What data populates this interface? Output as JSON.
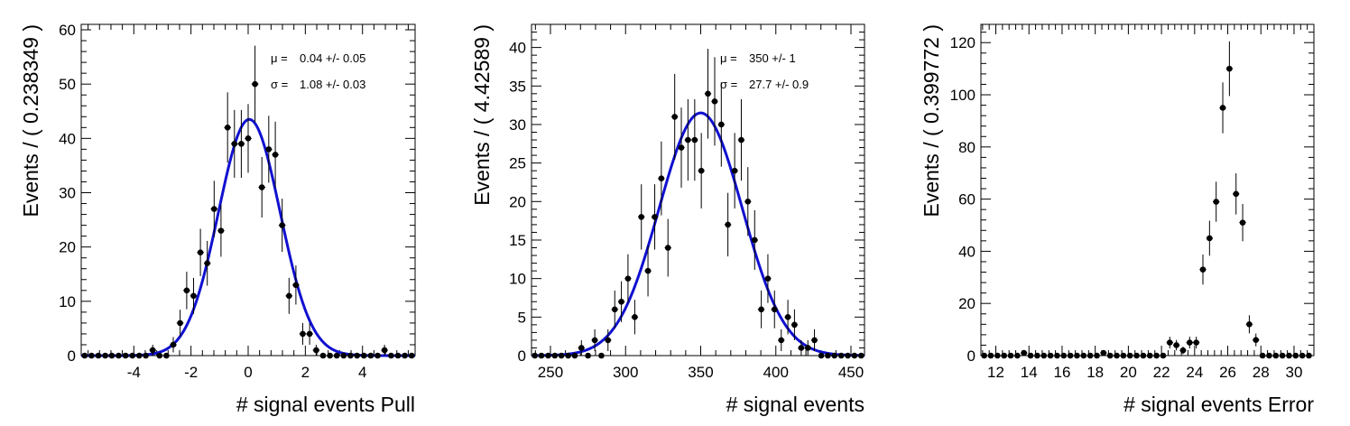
{
  "chart_data": [
    {
      "type": "scatter",
      "xlabel": "# signal events Pull",
      "ylabel": "Events / ( 0.238349 )",
      "xlim": [
        -5.84,
        5.84
      ],
      "ylim": [
        0,
        61
      ],
      "xticks": [
        -4,
        -2,
        0,
        2,
        4
      ],
      "yticks": [
        0,
        10,
        20,
        30,
        40,
        50,
        60
      ],
      "stats": [
        {
          "label": "μ =",
          "value": "0.04 +/- 0.05"
        },
        {
          "label": "σ =",
          "value": "1.08 +/- 0.03"
        }
      ],
      "fit": {
        "mean": 0.04,
        "sigma": 1.08,
        "amplitude": 43.5,
        "color": "#1010d0"
      },
      "x": [
        -5.72,
        -5.48,
        -5.24,
        -5.0,
        -4.77,
        -4.53,
        -4.29,
        -4.05,
        -3.81,
        -3.58,
        -3.34,
        -3.1,
        -2.86,
        -2.62,
        -2.38,
        -2.15,
        -1.91,
        -1.67,
        -1.43,
        -1.19,
        -0.95,
        -0.72,
        -0.48,
        -0.24,
        0.0,
        0.24,
        0.48,
        0.72,
        0.95,
        1.19,
        1.43,
        1.67,
        1.91,
        2.15,
        2.38,
        2.62,
        2.86,
        3.1,
        3.34,
        3.58,
        3.81,
        4.05,
        4.29,
        4.53,
        4.77,
        5.0,
        5.24,
        5.48,
        5.72
      ],
      "y": [
        0,
        0,
        0,
        0,
        0,
        0,
        0,
        0,
        0,
        0,
        1,
        0,
        0,
        2,
        6,
        12,
        11,
        19,
        17,
        27,
        23,
        42,
        39,
        39,
        40,
        50,
        31,
        38,
        37,
        24,
        11,
        13,
        4,
        4,
        1,
        0,
        0,
        0,
        0,
        0,
        0,
        0,
        0,
        0,
        1,
        0,
        0,
        0,
        0
      ]
    },
    {
      "type": "scatter",
      "xlabel": "# signal events",
      "ylabel": "Events / ( 4.42589 )",
      "xlim": [
        237.4,
        459.0
      ],
      "ylim": [
        0,
        43
      ],
      "xticks": [
        250,
        300,
        350,
        400,
        450
      ],
      "yticks": [
        0,
        5,
        10,
        15,
        20,
        25,
        30,
        35,
        40
      ],
      "stats": [
        {
          "label": "μ =",
          "value": "350 +/- 1"
        },
        {
          "label": "σ =",
          "value": "27.7 +/- 0.9"
        }
      ],
      "fit": {
        "mean": 350,
        "sigma": 27.7,
        "amplitude": 31.5,
        "color": "#1010d0"
      },
      "x": [
        239.6,
        244.0,
        248.5,
        252.9,
        257.3,
        261.8,
        266.2,
        270.6,
        275.0,
        279.5,
        283.9,
        288.3,
        292.8,
        297.2,
        301.6,
        306.1,
        310.5,
        314.9,
        319.4,
        323.8,
        328.2,
        332.7,
        337.1,
        341.5,
        346.0,
        350.4,
        354.8,
        359.3,
        363.7,
        368.1,
        372.6,
        377.0,
        381.4,
        385.9,
        390.3,
        394.7,
        399.1,
        403.6,
        408.0,
        412.4,
        416.9,
        421.3,
        425.7,
        430.2,
        434.6,
        439.0,
        443.5,
        447.9,
        452.3,
        456.8
      ],
      "y": [
        0,
        0,
        0,
        0,
        0,
        0,
        0,
        1,
        0,
        2,
        0,
        2,
        6,
        7,
        10,
        5,
        18,
        11,
        18,
        23,
        14,
        31,
        27,
        28,
        28,
        24,
        34,
        33,
        30,
        17,
        24,
        28,
        20,
        15,
        6,
        10,
        6,
        2,
        5,
        4,
        1,
        1,
        2,
        0,
        0,
        0,
        0,
        0,
        0,
        0
      ]
    },
    {
      "type": "scatter",
      "xlabel": "# signal events Error",
      "ylabel": "Events / ( 0.399772 )",
      "xlim": [
        11.1,
        31.2
      ],
      "ylim": [
        0,
        127
      ],
      "xticks": [
        12,
        14,
        16,
        18,
        20,
        22,
        24,
        26,
        28,
        30
      ],
      "yticks": [
        0,
        20,
        40,
        60,
        80,
        100,
        120
      ],
      "stats": [],
      "x": [
        11.3,
        11.7,
        12.1,
        12.5,
        12.9,
        13.3,
        13.7,
        14.1,
        14.5,
        14.9,
        15.3,
        15.7,
        16.1,
        16.5,
        16.9,
        17.3,
        17.7,
        18.1,
        18.5,
        18.9,
        19.3,
        19.7,
        20.1,
        20.5,
        20.9,
        21.3,
        21.7,
        22.1,
        22.5,
        22.9,
        23.3,
        23.7,
        24.1,
        24.5,
        24.9,
        25.3,
        25.7,
        26.1,
        26.5,
        26.9,
        27.3,
        27.7,
        28.1,
        28.5,
        28.9,
        29.3,
        29.7,
        30.1,
        30.5,
        30.9
      ],
      "y": [
        0,
        0,
        0,
        0,
        0,
        0,
        1,
        0,
        0,
        0,
        0,
        0,
        0,
        0,
        0,
        0,
        0,
        0,
        1,
        0,
        0,
        0,
        0,
        0,
        0,
        0,
        0,
        0,
        5,
        4,
        2,
        5,
        5,
        33,
        45,
        59,
        95,
        110,
        62,
        51,
        12,
        6,
        0,
        0,
        0,
        0,
        0,
        0,
        0,
        0
      ]
    }
  ]
}
